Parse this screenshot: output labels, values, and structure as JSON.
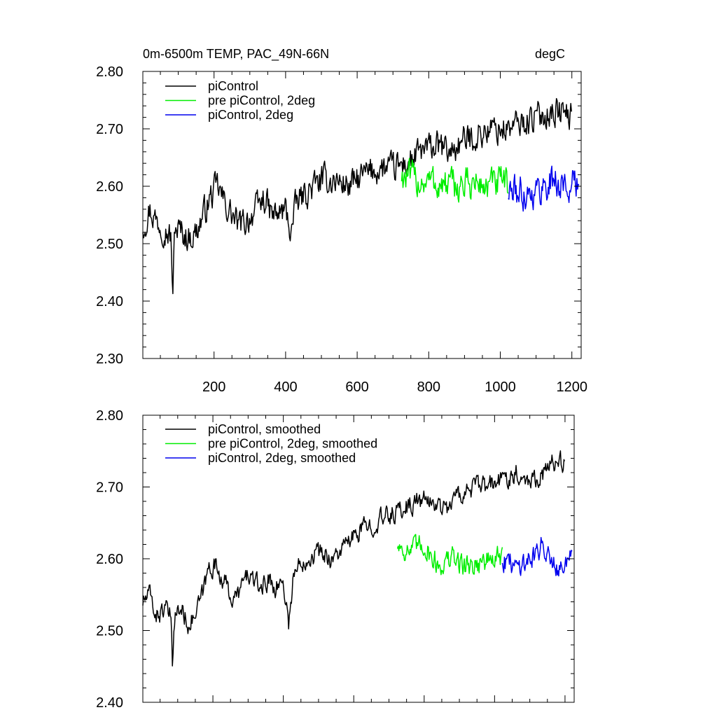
{
  "header": {
    "title": "0m-6500m TEMP, PAC_49N-66N",
    "units": "degC"
  },
  "chart_data": [
    {
      "type": "line",
      "title": "0m-6500m TEMP, PAC_49N-66N",
      "units": "degC",
      "xlabel": "",
      "ylabel": "",
      "xlim": [
        1,
        1226
      ],
      "ylim": [
        2.3,
        2.8
      ],
      "yticks": [
        "2.30",
        "2.40",
        "2.50",
        "2.60",
        "2.70",
        "2.80"
      ],
      "xticks": [
        "200",
        "400",
        "600",
        "800",
        "1000",
        "1200"
      ],
      "legend": [
        "piControl",
        "pre piControl, 2deg",
        "piControl, 2deg"
      ],
      "series": [
        {
          "name": "piControl",
          "color": "#000000",
          "x": [
            1,
            1200
          ],
          "anchors": [
            [
              1,
              2.53
            ],
            [
              20,
              2.56
            ],
            [
              40,
              2.54
            ],
            [
              60,
              2.53
            ],
            [
              80,
              2.51
            ],
            [
              85,
              2.4
            ],
            [
              90,
              2.53
            ],
            [
              110,
              2.52
            ],
            [
              130,
              2.51
            ],
            [
              150,
              2.52
            ],
            [
              170,
              2.55
            ],
            [
              190,
              2.58
            ],
            [
              210,
              2.6
            ],
            [
              230,
              2.57
            ],
            [
              250,
              2.55
            ],
            [
              270,
              2.53
            ],
            [
              290,
              2.54
            ],
            [
              320,
              2.56
            ],
            [
              340,
              2.58
            ],
            [
              360,
              2.55
            ],
            [
              380,
              2.55
            ],
            [
              400,
              2.56
            ],
            [
              415,
              2.52
            ],
            [
              430,
              2.57
            ],
            [
              460,
              2.59
            ],
            [
              500,
              2.61
            ],
            [
              540,
              2.61
            ],
            [
              580,
              2.6
            ],
            [
              620,
              2.62
            ],
            [
              660,
              2.63
            ],
            [
              700,
              2.63
            ],
            [
              740,
              2.64
            ],
            [
              780,
              2.66
            ],
            [
              820,
              2.67
            ],
            [
              860,
              2.66
            ],
            [
              900,
              2.68
            ],
            [
              940,
              2.69
            ],
            [
              980,
              2.7
            ],
            [
              1020,
              2.7
            ],
            [
              1060,
              2.71
            ],
            [
              1100,
              2.72
            ],
            [
              1140,
              2.73
            ],
            [
              1170,
              2.73
            ],
            [
              1200,
              2.72
            ]
          ],
          "noise": 0.022
        },
        {
          "name": "pre piControl, 2deg",
          "color": "#00ee00",
          "x": [
            724,
            1022
          ],
          "anchors": [
            [
              724,
              2.62
            ],
            [
              760,
              2.61
            ],
            [
              800,
              2.61
            ],
            [
              840,
              2.6
            ],
            [
              880,
              2.6
            ],
            [
              920,
              2.605
            ],
            [
              960,
              2.6
            ],
            [
              1000,
              2.605
            ],
            [
              1022,
              2.6
            ]
          ],
          "noise": 0.025
        },
        {
          "name": "piControl, 2deg",
          "color": "#0000ee",
          "x": [
            1022,
            1220
          ],
          "anchors": [
            [
              1022,
              2.59
            ],
            [
              1060,
              2.59
            ],
            [
              1100,
              2.59
            ],
            [
              1140,
              2.61
            ],
            [
              1180,
              2.6
            ],
            [
              1220,
              2.6
            ]
          ],
          "noise": 0.025
        }
      ]
    },
    {
      "type": "line",
      "title": "",
      "xlabel": "",
      "ylabel": "",
      "xlim": [
        1,
        1226
      ],
      "ylim": [
        2.4,
        2.8
      ],
      "yticks": [
        "2.40",
        "2.50",
        "2.60",
        "2.70",
        "2.80"
      ],
      "xticks": [],
      "legend": [
        "piControl, smoothed",
        "pre piControl, 2deg, smoothed",
        "piControl, 2deg, smoothed"
      ],
      "series": [
        {
          "name": "piControl, smoothed",
          "color": "#000000",
          "x": [
            1,
            1200
          ],
          "anchors": [
            [
              1,
              2.54
            ],
            [
              20,
              2.55
            ],
            [
              40,
              2.52
            ],
            [
              60,
              2.53
            ],
            [
              80,
              2.52
            ],
            [
              85,
              2.45
            ],
            [
              90,
              2.52
            ],
            [
              110,
              2.53
            ],
            [
              130,
              2.51
            ],
            [
              150,
              2.52
            ],
            [
              170,
              2.55
            ],
            [
              190,
              2.59
            ],
            [
              210,
              2.59
            ],
            [
              230,
              2.57
            ],
            [
              260,
              2.54
            ],
            [
              280,
              2.56
            ],
            [
              300,
              2.58
            ],
            [
              330,
              2.56
            ],
            [
              360,
              2.57
            ],
            [
              380,
              2.56
            ],
            [
              400,
              2.57
            ],
            [
              415,
              2.51
            ],
            [
              430,
              2.58
            ],
            [
              460,
              2.6
            ],
            [
              500,
              2.61
            ],
            [
              540,
              2.6
            ],
            [
              580,
              2.62
            ],
            [
              620,
              2.64
            ],
            [
              660,
              2.65
            ],
            [
              700,
              2.66
            ],
            [
              740,
              2.67
            ],
            [
              780,
              2.68
            ],
            [
              820,
              2.68
            ],
            [
              860,
              2.67
            ],
            [
              900,
              2.69
            ],
            [
              940,
              2.7
            ],
            [
              980,
              2.7
            ],
            [
              1020,
              2.71
            ],
            [
              1060,
              2.72
            ],
            [
              1100,
              2.71
            ],
            [
              1140,
              2.72
            ],
            [
              1180,
              2.74
            ],
            [
              1200,
              2.73
            ]
          ],
          "noise": 0.012
        },
        {
          "name": "pre piControl, 2deg, smoothed",
          "color": "#00ee00",
          "x": [
            724,
            1022
          ],
          "anchors": [
            [
              724,
              2.62
            ],
            [
              760,
              2.61
            ],
            [
              800,
              2.62
            ],
            [
              840,
              2.59
            ],
            [
              880,
              2.6
            ],
            [
              920,
              2.59
            ],
            [
              960,
              2.595
            ],
            [
              1000,
              2.6
            ],
            [
              1022,
              2.6
            ]
          ],
          "noise": 0.014
        },
        {
          "name": "piControl, 2deg, smoothed",
          "color": "#0000ee",
          "x": [
            1022,
            1220
          ],
          "anchors": [
            [
              1022,
              2.6
            ],
            [
              1060,
              2.59
            ],
            [
              1100,
              2.6
            ],
            [
              1140,
              2.62
            ],
            [
              1180,
              2.59
            ],
            [
              1220,
              2.6
            ]
          ],
          "noise": 0.014
        }
      ]
    }
  ]
}
